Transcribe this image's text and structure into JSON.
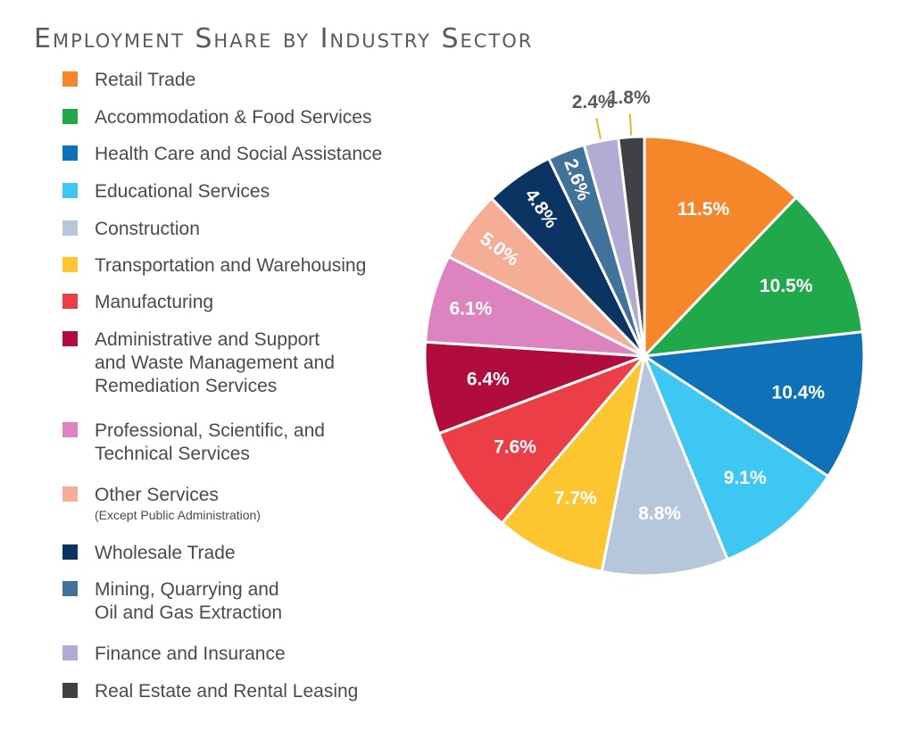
{
  "chart_data": {
    "type": "pie",
    "title": "Employment Share by Industry Sector",
    "legend_position": "left",
    "slices": [
      {
        "label": "Retail Trade",
        "value": 11.5,
        "display": "11.5%",
        "color": "#f5862a"
      },
      {
        "label": "Accommodation & Food Services",
        "value": 10.5,
        "display": "10.5%",
        "color": "#21a84a"
      },
      {
        "label": "Health Care and Social Assistance",
        "value": 10.4,
        "display": "10.4%",
        "color": "#0f71b8"
      },
      {
        "label": "Educational Services",
        "value": 9.1,
        "display": "9.1%",
        "color": "#3ec7f3"
      },
      {
        "label": "Construction",
        "value": 8.8,
        "display": "8.8%",
        "color": "#b6c7dc"
      },
      {
        "label": "Transportation and Warehousing",
        "value": 7.7,
        "display": "7.7%",
        "color": "#fdc530"
      },
      {
        "label": "Manufacturing",
        "value": 7.6,
        "display": "7.6%",
        "color": "#ec3e47"
      },
      {
        "label": "Administrative and Support\nand Waste Management and\nRemediation Services",
        "value": 6.4,
        "display": "6.4%",
        "color": "#b10c3e"
      },
      {
        "label": "Professional, Scientific, and\nTechnical Services",
        "value": 6.1,
        "display": "6.1%",
        "color": "#dd84c0"
      },
      {
        "label": "Other Services",
        "note": "(Except Public Administration)",
        "value": 5.0,
        "display": "5.0%",
        "color": "#f6ad96"
      },
      {
        "label": "Wholesale Trade",
        "value": 4.8,
        "display": "4.8%",
        "color": "#0c3463"
      },
      {
        "label": "Mining, Quarrying and\nOil and Gas Extraction",
        "value": 2.6,
        "display": "2.6%",
        "color": "#41729a"
      },
      {
        "label": "Finance and Insurance",
        "value": 2.4,
        "display": "2.4%",
        "color": "#b2abd4"
      },
      {
        "label": "Real Estate and Rental Leasing",
        "value": 1.8,
        "display": "1.8%",
        "color": "#3f4145"
      }
    ]
  }
}
